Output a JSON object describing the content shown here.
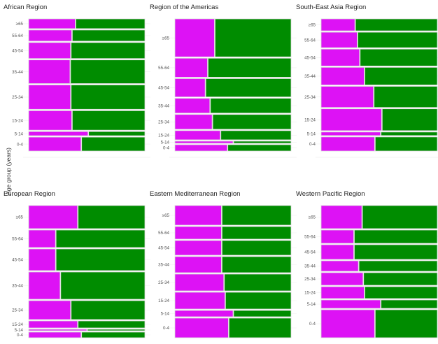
{
  "chart_data": {
    "type": "mosaic",
    "ylabel": "Age group (years)",
    "xlabel": "",
    "colors": {
      "first": "#dd12f5",
      "second": "#008c00",
      "divider": "#d9d9d9",
      "grid": "#efefef",
      "tick_text": "#555555",
      "title_text": "#222222"
    },
    "age_groups": [
      "≥65",
      "55-64",
      "45-54",
      "35-44",
      "25-34",
      "15-24",
      "5-14",
      "0-4"
    ],
    "layout": "2x3 facets",
    "panels": [
      {
        "title": "African Region",
        "row_share": [
          14,
          16,
          23,
          34,
          35,
          28,
          6,
          20
        ],
        "first_fraction": [
          0.4,
          0.37,
          0.36,
          0.355,
          0.36,
          0.37,
          0.51,
          0.45
        ]
      },
      {
        "title": "Region of the Americas",
        "row_share": [
          54,
          27,
          26,
          21,
          21,
          13,
          3,
          9
        ],
        "first_fraction": [
          0.34,
          0.28,
          0.26,
          0.3,
          0.32,
          0.39,
          0.5,
          0.45
        ]
      },
      {
        "title": "South-East Asia Region",
        "row_share": [
          17,
          22,
          24,
          25,
          30,
          31,
          5,
          20
        ],
        "first_fraction": [
          0.29,
          0.31,
          0.33,
          0.37,
          0.45,
          0.52,
          0.51,
          0.46
        ]
      },
      {
        "title": "European Region",
        "row_share": [
          33,
          25,
          31,
          39,
          27,
          10,
          2,
          8
        ],
        "first_fraction": [
          0.42,
          0.23,
          0.23,
          0.27,
          0.36,
          0.42,
          0.5,
          0.45
        ]
      },
      {
        "title": "Eastern Mediterranean Region",
        "row_share": [
          28,
          18,
          21,
          23,
          24,
          24,
          9,
          28
        ],
        "first_fraction": [
          0.4,
          0.4,
          0.4,
          0.4,
          0.42,
          0.43,
          0.5,
          0.46
        ]
      },
      {
        "title": "Western Pacific Region",
        "row_share": [
          33,
          19,
          21,
          15,
          18,
          17,
          12,
          40
        ],
        "first_fraction": [
          0.35,
          0.28,
          0.28,
          0.32,
          0.36,
          0.37,
          0.51,
          0.46
        ]
      }
    ]
  }
}
